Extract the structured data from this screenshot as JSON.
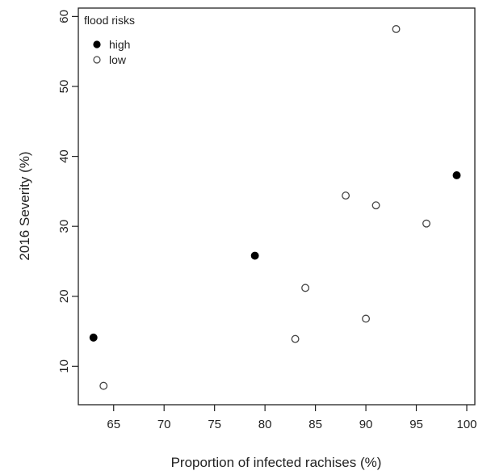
{
  "chart_data": {
    "type": "scatter",
    "xlabel": "Proportion of infected rachises (%)",
    "ylabel": "2016 Severity (%)",
    "xlim": [
      61.5,
      100.8
    ],
    "ylim": [
      4.5,
      61.2
    ],
    "xticks": [
      65,
      70,
      75,
      80,
      85,
      90,
      95,
      100
    ],
    "yticks": [
      10,
      20,
      30,
      40,
      50,
      60
    ],
    "grid": false,
    "legend": {
      "title": "flood risks",
      "placement": "top-left",
      "entries": [
        {
          "label": "high",
          "fill": "#000000"
        },
        {
          "label": "low",
          "fill": "#ffffff"
        }
      ]
    },
    "series": [
      {
        "name": "high",
        "fill": "#000000",
        "points": [
          [
            63,
            14.1
          ],
          [
            79,
            25.8
          ],
          [
            99,
            37.3
          ]
        ]
      },
      {
        "name": "low",
        "fill": "#ffffff",
        "points": [
          [
            64,
            7.2
          ],
          [
            83,
            13.9
          ],
          [
            84,
            21.2
          ],
          [
            88,
            34.4
          ],
          [
            90,
            16.8
          ],
          [
            91,
            33.0
          ],
          [
            93,
            58.2
          ],
          [
            96,
            30.4
          ]
        ]
      }
    ]
  }
}
